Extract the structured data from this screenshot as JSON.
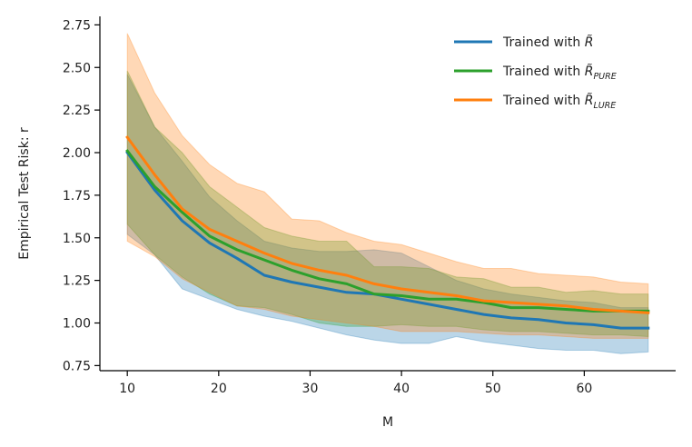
{
  "chart_data": {
    "type": "line",
    "xlabel": "M",
    "ylabel": "Empirical Test Risk: r",
    "xlim": [
      7,
      70
    ],
    "ylim": [
      0.72,
      2.8
    ],
    "xticks": [
      10,
      20,
      30,
      40,
      50,
      60
    ],
    "yticks": [
      0.75,
      1.0,
      1.25,
      1.5,
      1.75,
      2.0,
      2.25,
      2.5,
      2.75
    ],
    "legend_position": "top-right",
    "x": [
      10,
      13,
      16,
      19,
      22,
      25,
      28,
      31,
      34,
      37,
      40,
      43,
      46,
      49,
      52,
      55,
      58,
      61,
      64,
      67
    ],
    "series": [
      {
        "name": "Trained with R̃",
        "name_base": "R",
        "name_sub": "",
        "color": "#1f77b4",
        "values": [
          2.0,
          1.78,
          1.6,
          1.47,
          1.38,
          1.28,
          1.24,
          1.21,
          1.18,
          1.17,
          1.14,
          1.11,
          1.08,
          1.05,
          1.03,
          1.02,
          1.0,
          0.99,
          0.97,
          0.97
        ],
        "lower": [
          1.52,
          1.4,
          1.2,
          1.14,
          1.08,
          1.04,
          1.01,
          0.97,
          0.93,
          0.9,
          0.88,
          0.88,
          0.92,
          0.89,
          0.87,
          0.85,
          0.84,
          0.84,
          0.82,
          0.83
        ],
        "upper": [
          2.46,
          2.15,
          1.95,
          1.74,
          1.6,
          1.48,
          1.44,
          1.42,
          1.42,
          1.43,
          1.41,
          1.33,
          1.25,
          1.2,
          1.17,
          1.15,
          1.13,
          1.12,
          1.09,
          1.09
        ]
      },
      {
        "name": "Trained with R̃PURE",
        "name_base": "R",
        "name_sub": "PURE",
        "color": "#2ca02c",
        "values": [
          2.01,
          1.8,
          1.65,
          1.51,
          1.43,
          1.37,
          1.31,
          1.26,
          1.23,
          1.17,
          1.16,
          1.14,
          1.14,
          1.12,
          1.09,
          1.09,
          1.08,
          1.07,
          1.07,
          1.07
        ],
        "lower": [
          1.58,
          1.4,
          1.27,
          1.17,
          1.1,
          1.09,
          1.05,
          1.0,
          0.98,
          0.98,
          0.99,
          0.98,
          0.98,
          0.96,
          0.95,
          0.95,
          0.94,
          0.93,
          0.93,
          0.92
        ],
        "upper": [
          2.48,
          2.15,
          2.0,
          1.8,
          1.68,
          1.56,
          1.51,
          1.48,
          1.48,
          1.33,
          1.33,
          1.32,
          1.27,
          1.26,
          1.21,
          1.21,
          1.18,
          1.19,
          1.17,
          1.17
        ]
      },
      {
        "name": "Trained with R̃LURE",
        "name_base": "R",
        "name_sub": "LURE",
        "color": "#ff7f0e",
        "values": [
          2.09,
          1.87,
          1.67,
          1.55,
          1.48,
          1.41,
          1.35,
          1.31,
          1.28,
          1.23,
          1.2,
          1.18,
          1.16,
          1.13,
          1.12,
          1.11,
          1.1,
          1.08,
          1.07,
          1.06
        ],
        "lower": [
          1.48,
          1.39,
          1.26,
          1.18,
          1.1,
          1.08,
          1.04,
          1.02,
          1.0,
          0.98,
          0.95,
          0.95,
          0.95,
          0.94,
          0.93,
          0.93,
          0.92,
          0.91,
          0.91,
          0.91
        ],
        "upper": [
          2.7,
          2.35,
          2.1,
          1.93,
          1.82,
          1.77,
          1.61,
          1.6,
          1.53,
          1.48,
          1.46,
          1.41,
          1.36,
          1.32,
          1.32,
          1.29,
          1.28,
          1.27,
          1.24,
          1.23
        ]
      }
    ]
  }
}
